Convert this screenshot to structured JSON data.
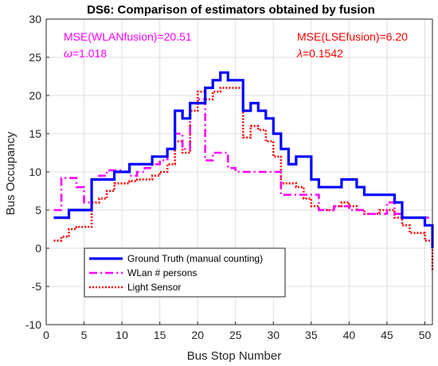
{
  "chart_data": {
    "type": "line",
    "title": "DS6: Comparison of estimators obtained by fusion",
    "xlabel": "Bus Stop Number",
    "ylabel": "Bus Occupancy",
    "xlim": [
      0,
      51
    ],
    "ylim": [
      -10,
      30
    ],
    "xticks": [
      0,
      5,
      10,
      15,
      20,
      25,
      30,
      35,
      40,
      45,
      50
    ],
    "yticks": [
      -10,
      -5,
      0,
      5,
      10,
      15,
      20,
      25,
      30
    ],
    "grid": true,
    "legend_position": "bottom-left",
    "annotations": [
      {
        "id": "mse_wlan",
        "text": "MSE(WLANfusion)=20.51",
        "color": "#ff00ff",
        "side": "left"
      },
      {
        "id": "omega",
        "symbol": "ω",
        "text": "=1.018",
        "color": "#ff00ff",
        "side": "left"
      },
      {
        "id": "mse_lse",
        "text": "MSE(LSEfusion)=6.20",
        "color": "#ff0000",
        "side": "right"
      },
      {
        "id": "lambda",
        "symbol": "λ",
        "text": "=0.1542",
        "color": "#ff0000",
        "side": "right"
      }
    ],
    "series": [
      {
        "name": "Ground Truth (manual counting)",
        "color": "#0000ff",
        "style": "solid",
        "x": [
          1,
          2,
          3,
          4,
          5,
          6,
          7,
          8,
          9,
          10,
          11,
          12,
          13,
          14,
          15,
          16,
          17,
          18,
          19,
          20,
          21,
          22,
          23,
          24,
          25,
          26,
          27,
          28,
          29,
          30,
          31,
          32,
          33,
          34,
          35,
          36,
          37,
          38,
          39,
          40,
          41,
          42,
          43,
          44,
          45,
          46,
          47,
          48,
          49,
          50,
          51
        ],
        "y": [
          4,
          4,
          5,
          5,
          5,
          9,
          9,
          9,
          10,
          10,
          11,
          11,
          11,
          12,
          12,
          13,
          18,
          17,
          19,
          19,
          21,
          22,
          23,
          22,
          22,
          18,
          19,
          18,
          17,
          15,
          13,
          11,
          12,
          12,
          9,
          8,
          8,
          8,
          9,
          9,
          8,
          7,
          7,
          7,
          7,
          6,
          4,
          4,
          4,
          3,
          0
        ]
      },
      {
        "name": "WLan # persons",
        "color": "#ff00ff",
        "style": "dashdot",
        "x": [
          1,
          2,
          3,
          4,
          5,
          6,
          7,
          8,
          9,
          10,
          11,
          12,
          13,
          14,
          15,
          16,
          17,
          18,
          19,
          20,
          21,
          22,
          23,
          24,
          25,
          26,
          27,
          28,
          29,
          30,
          31,
          32,
          33,
          34,
          35,
          36,
          37,
          38,
          39,
          40,
          41,
          42,
          43,
          44,
          45,
          46,
          47,
          48,
          49,
          50,
          51
        ],
        "y": [
          5,
          9.2,
          9.2,
          8,
          6,
          9,
          9.5,
          10.2,
          10.2,
          10,
          9.5,
          10,
          10.5,
          11,
          11.5,
          13,
          15,
          13,
          19,
          19.5,
          11.5,
          12.5,
          12.5,
          10.5,
          10,
          10,
          10,
          10,
          10,
          10,
          7,
          7,
          7,
          7,
          7,
          5,
          5,
          5.5,
          5.5,
          5,
          5,
          4.5,
          4.5,
          4.5,
          6,
          4.5,
          4,
          4,
          4,
          4,
          4
        ]
      },
      {
        "name": "Light Sensor",
        "color": "#ff0000",
        "style": "dotted",
        "x": [
          1,
          2,
          3,
          4,
          5,
          6,
          7,
          8,
          9,
          10,
          11,
          12,
          13,
          14,
          15,
          16,
          17,
          18,
          19,
          20,
          21,
          22,
          23,
          24,
          25,
          26,
          27,
          28,
          29,
          30,
          31,
          32,
          33,
          34,
          35,
          36,
          37,
          38,
          39,
          40,
          41,
          42,
          43,
          44,
          45,
          46,
          47,
          48,
          49,
          50,
          51
        ],
        "y": [
          1,
          1.5,
          2.5,
          2.8,
          2.8,
          6,
          6.5,
          7.5,
          8.5,
          8.5,
          8.8,
          9,
          9,
          9.5,
          10,
          11,
          14,
          12.5,
          18,
          20.5,
          19.5,
          20.5,
          21,
          21,
          21,
          14.5,
          16,
          15.5,
          14,
          12,
          8.5,
          8.5,
          8,
          6.5,
          5.5,
          5,
          5,
          5.5,
          6,
          5.5,
          5,
          4.5,
          4.5,
          5,
          5,
          4,
          3,
          2,
          2,
          1,
          -3
        ]
      }
    ]
  }
}
